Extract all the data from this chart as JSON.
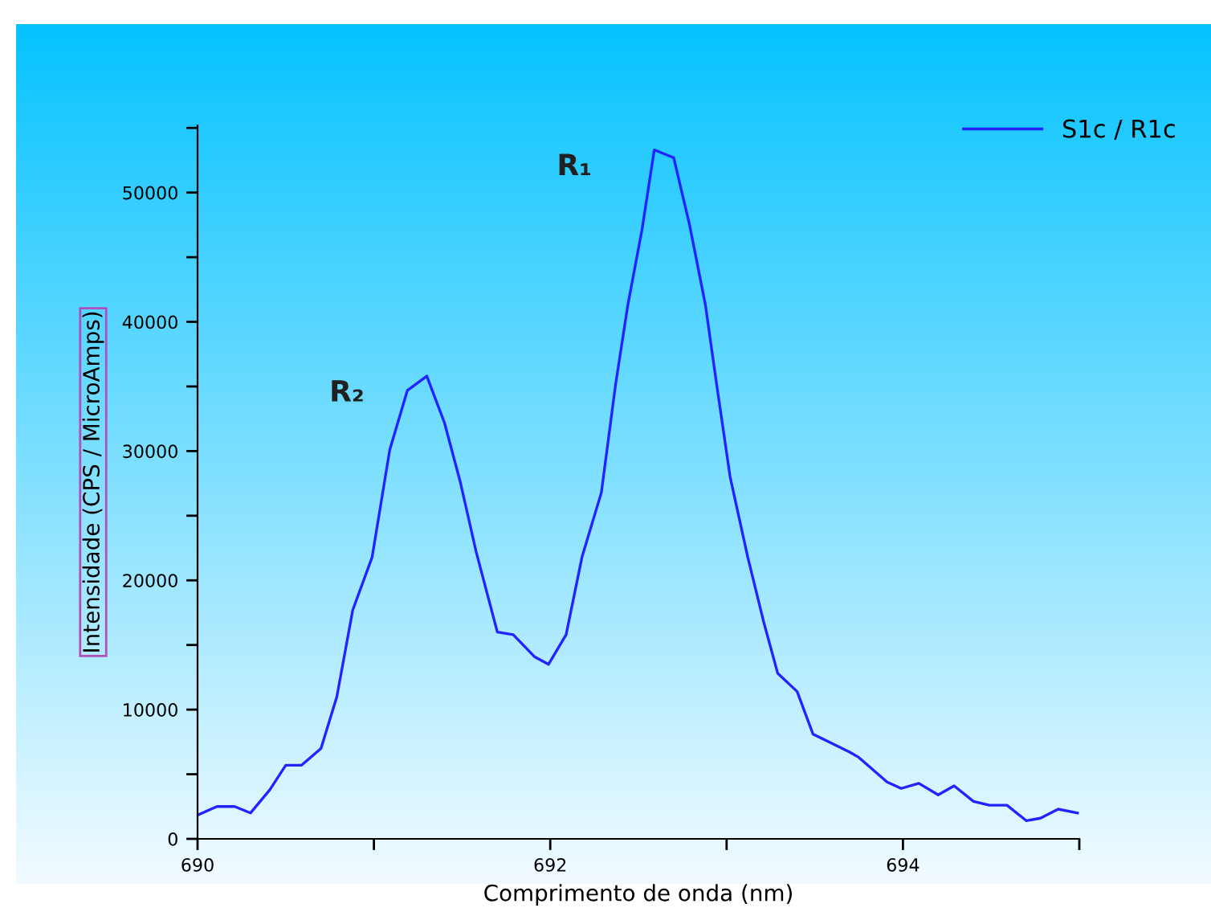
{
  "chart_data": {
    "type": "line",
    "xlabel": "Comprimento de onda (nm)",
    "ylabel": "Intensidade (CPS / MicroAmps)",
    "xlim": [
      690,
      695
    ],
    "xticks": [
      690,
      {
        "value": 691,
        "label": null
      },
      692,
      {
        "value": 693,
        "label": null
      },
      694,
      {
        "value": 695,
        "label": null
      }
    ],
    "ylim": [
      0,
      55200
    ],
    "yticks": [
      0,
      {
        "value": 5000,
        "label": null
      },
      10000,
      {
        "value": 15000,
        "label": null
      },
      20000,
      {
        "value": 25000,
        "label": null
      },
      30000,
      {
        "value": 35000,
        "label": null
      },
      40000,
      {
        "value": 45000,
        "label": null
      },
      50000,
      {
        "value": 55000,
        "label": null
      }
    ],
    "grid": false,
    "legend": "top right",
    "marker": "none",
    "line_style": "solid",
    "annotations": [
      {
        "text": "R₂",
        "x": 691.3,
        "y": 35800
      },
      {
        "text": "R₁",
        "x": 692.59,
        "y": 53300
      }
    ],
    "series": [
      {
        "name": "S1c / R1c",
        "color": "#2323ff",
        "x": [
          690.01,
          690.11,
          690.21,
          690.3,
          690.41,
          690.5,
          690.59,
          690.7,
          690.79,
          690.88,
          690.99,
          691.09,
          691.19,
          691.3,
          691.4,
          691.49,
          691.58,
          691.7,
          691.79,
          691.91,
          691.99,
          692.09,
          692.18,
          692.29,
          692.37,
          692.44,
          692.52,
          692.59,
          692.7,
          692.79,
          692.88,
          692.94,
          693.02,
          693.12,
          693.21,
          693.29,
          693.4,
          693.49,
          693.7,
          693.75,
          693.91,
          693.99,
          694.09,
          694.2,
          694.29,
          694.4,
          694.49,
          694.59,
          694.7,
          694.78,
          694.88,
          694.99
        ],
        "values": [
          1900,
          2500,
          2500,
          2000,
          3800,
          5700,
          5700,
          7000,
          11000,
          17700,
          21800,
          30100,
          34700,
          35800,
          32200,
          27600,
          22200,
          16000,
          15800,
          14100,
          13500,
          15800,
          21800,
          26800,
          35100,
          41300,
          47100,
          53300,
          52700,
          47500,
          41300,
          35500,
          28000,
          21800,
          16800,
          12800,
          11400,
          8100,
          6700,
          6300,
          4400,
          3900,
          4300,
          3400,
          4100,
          2900,
          2600,
          2600,
          1400,
          1600,
          2300,
          2000
        ]
      }
    ]
  }
}
